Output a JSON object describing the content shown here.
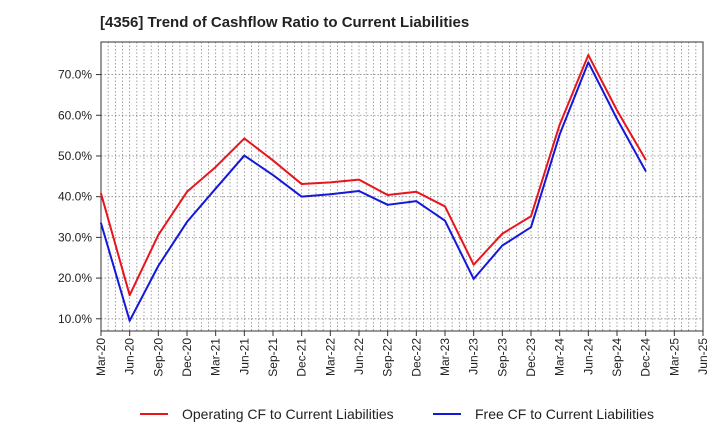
{
  "chart_data": {
    "type": "line",
    "title": "[4356]  Trend of Cashflow Ratio to Current Liabilities",
    "xlabel": "",
    "ylabel": "",
    "categories": [
      "Mar-20",
      "Jun-20",
      "Sep-20",
      "Dec-20",
      "Mar-21",
      "Jun-21",
      "Sep-21",
      "Dec-21",
      "Mar-22",
      "Jun-22",
      "Sep-22",
      "Dec-22",
      "Mar-23",
      "Jun-23",
      "Sep-23",
      "Dec-23",
      "Mar-24",
      "Jun-24",
      "Sep-24",
      "Dec-24",
      "Mar-25",
      "Jun-25"
    ],
    "ylim": [
      7,
      78
    ],
    "yticks": [
      10,
      20,
      30,
      40,
      50,
      60,
      70
    ],
    "ytick_labels": [
      "10.0%",
      "20.0%",
      "30.0%",
      "40.0%",
      "50.0%",
      "60.0%",
      "70.0%"
    ],
    "grid": true,
    "legend_position": "bottom",
    "series": [
      {
        "name": "Operating CF to Current Liabilities",
        "color": "#e8141e",
        "values": [
          40.8,
          15.8,
          30.6,
          41.2,
          47.3,
          54.3,
          48.9,
          43.1,
          43.5,
          44.2,
          40.4,
          41.2,
          37.6,
          23.3,
          30.9,
          35.2,
          57.7,
          74.8,
          61.2,
          49.1,
          null,
          null
        ]
      },
      {
        "name": "Free CF to Current Liabilities",
        "color": "#1418d8",
        "values": [
          33.5,
          9.5,
          23.0,
          33.8,
          42.0,
          50.1,
          45.3,
          40.0,
          40.6,
          41.4,
          38.0,
          38.9,
          34.1,
          19.8,
          28.0,
          32.5,
          55.3,
          73.0,
          59.1,
          46.3,
          null,
          null
        ]
      }
    ]
  }
}
